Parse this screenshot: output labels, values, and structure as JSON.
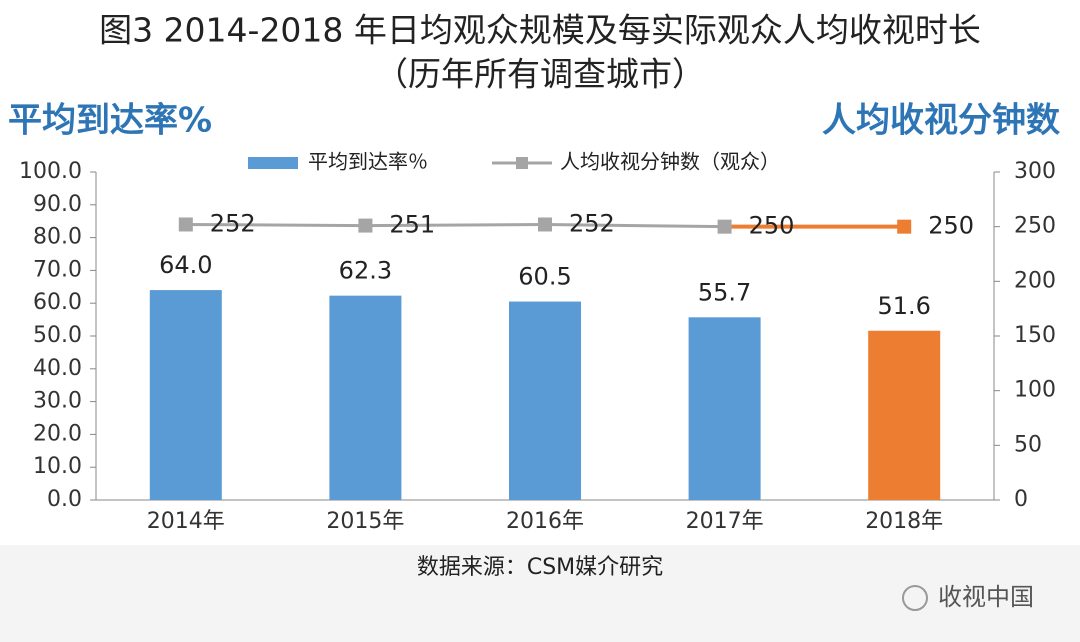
{
  "chart_data": {
    "type": "bar",
    "title": "图3 2014-2018 年日均观众规模及每实际观众人均收视时长",
    "subtitle": "（历年所有调查城市）",
    "y_axis_title": "平均到达率%",
    "y2_axis_title": "人均收视分钟数",
    "categories": [
      "2014年",
      "2015年",
      "2016年",
      "2017年",
      "2018年"
    ],
    "series": [
      {
        "name": "平均到达率％",
        "type": "bar",
        "color": "#5b9bd5",
        "colors": [
          "#5b9bd5",
          "#5b9bd5",
          "#5b9bd5",
          "#5b9bd5",
          "#ed7d31"
        ],
        "values": [
          64.0,
          62.3,
          60.5,
          55.7,
          51.6
        ],
        "value_labels": [
          "64.0",
          "62.3",
          "60.5",
          "55.7",
          "51.6"
        ]
      },
      {
        "name": "人均收视分钟数（观众）",
        "type": "line",
        "axis": "y2",
        "color": "#a5a5a5",
        "colors": [
          "#a5a5a5",
          "#a5a5a5",
          "#a5a5a5",
          "#a5a5a5",
          "#ed7d31"
        ],
        "values": [
          252,
          251,
          252,
          250,
          250
        ]
      }
    ],
    "ylim": [
      0,
      100
    ],
    "yticks": [
      {
        "value": 0,
        "label": "0.0"
      },
      {
        "value": 10,
        "label": "10.0"
      },
      {
        "value": 20,
        "label": "20.0"
      },
      {
        "value": 30,
        "label": "30.0"
      },
      {
        "value": 40,
        "label": "40.0"
      },
      {
        "value": 50,
        "label": "50.0"
      },
      {
        "value": 60,
        "label": "60.0"
      },
      {
        "value": 70,
        "label": "70.0"
      },
      {
        "value": 80,
        "label": "80.0"
      },
      {
        "value": 90,
        "label": "90.0"
      },
      {
        "value": 100,
        "label": "100.0"
      }
    ],
    "y2lim": [
      0,
      300
    ],
    "y2ticks": [
      0,
      50,
      100,
      150,
      200,
      250,
      300
    ],
    "grid": false,
    "legend": "top",
    "source": "数据来源：CSM媒介研究",
    "watermark": "收视中国"
  }
}
